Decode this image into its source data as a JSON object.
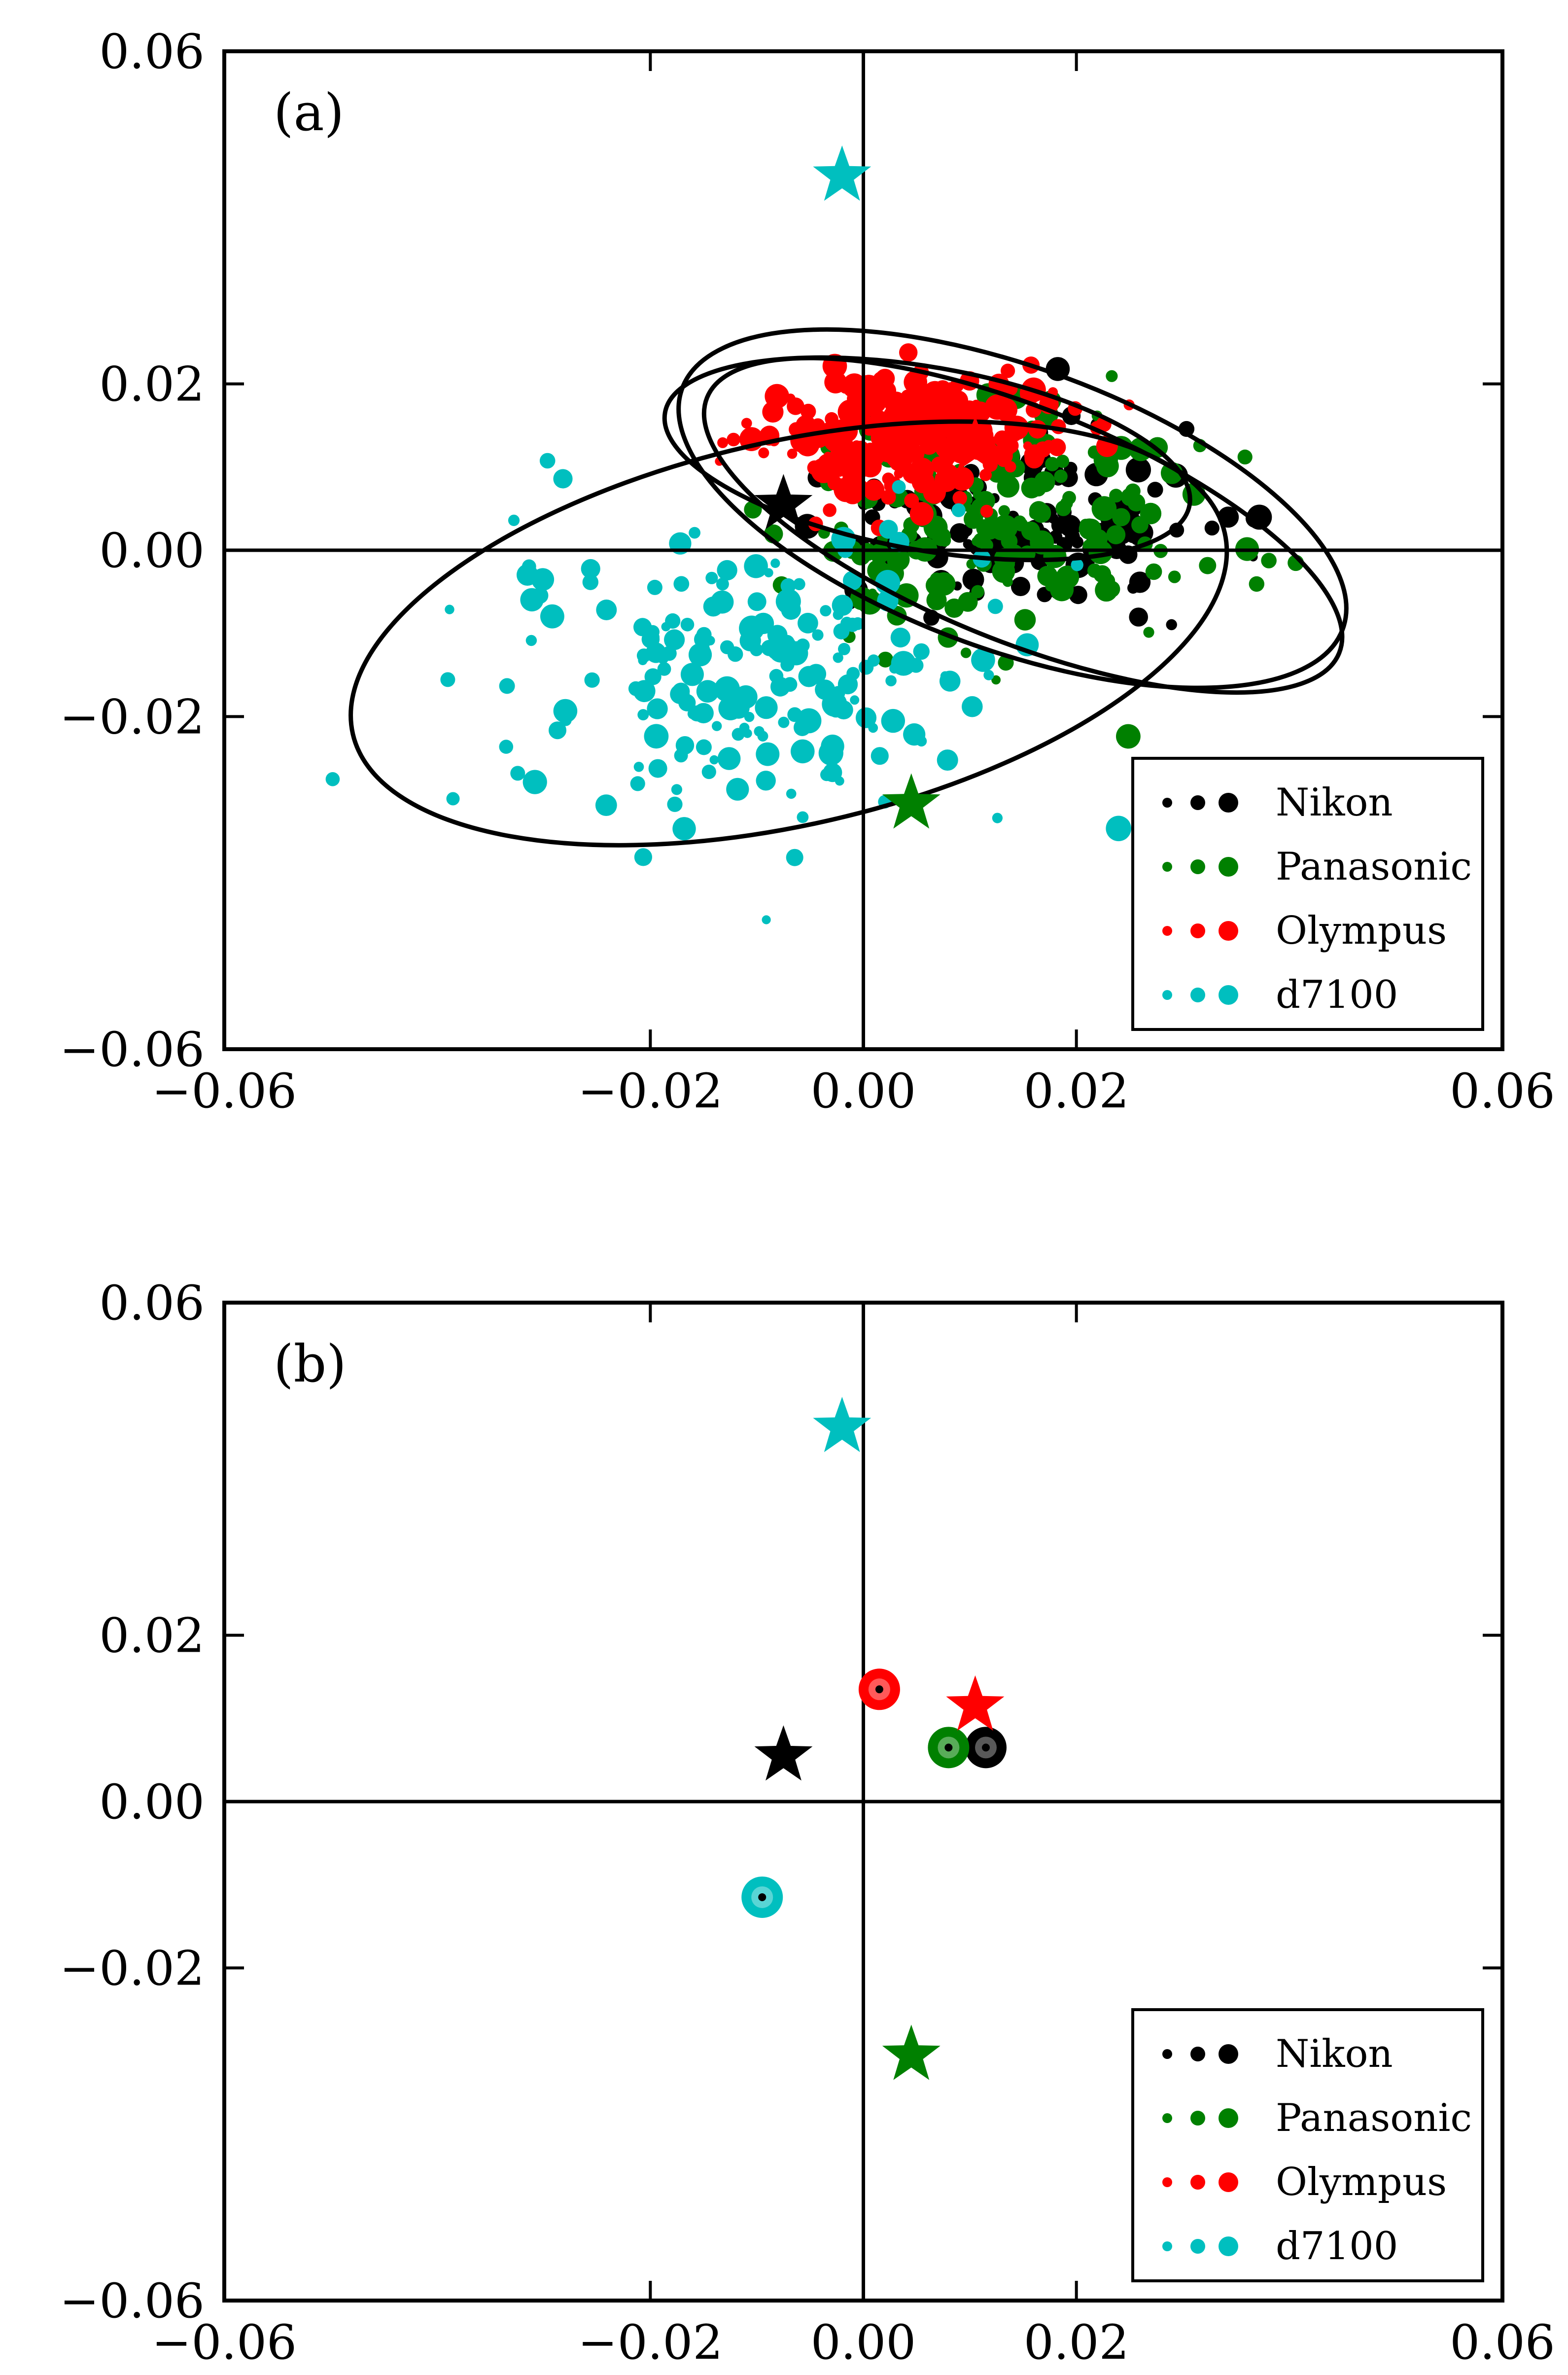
{
  "chart_data": [
    {
      "type": "scatter",
      "panel_label": "(a)",
      "xlim": [
        -0.06,
        0.06
      ],
      "ylim": [
        -0.06,
        0.06
      ],
      "xticks": [
        -0.06,
        -0.02,
        0.0,
        0.02,
        0.06
      ],
      "yticks": [
        -0.06,
        -0.02,
        0.0,
        0.02,
        0.06
      ],
      "xtick_labels": [
        "−0.06",
        "−0.02",
        "0.00",
        "0.02",
        "0.06"
      ],
      "ytick_labels": [
        "−0.06",
        "−0.02",
        "0.00",
        "0.02",
        "0.06"
      ],
      "axis_lines": {
        "x": 0,
        "y": 0
      },
      "legend": {
        "position": "lower-right",
        "entries": [
          {
            "label": "Nikon",
            "color": "#000000"
          },
          {
            "label": "Panasonic",
            "color": "#008000"
          },
          {
            "label": "Olympus",
            "color": "#ff0000"
          },
          {
            "label": "d7100",
            "color": "#00bfbf"
          }
        ]
      },
      "stars": [
        {
          "series": "Nikon",
          "x": -0.0075,
          "y": 0.0055,
          "color": "#000000"
        },
        {
          "series": "Panasonic",
          "x": 0.0045,
          "y": -0.0305,
          "color": "#008000"
        },
        {
          "series": "Olympus",
          "x": 0.0105,
          "y": 0.0125,
          "color": "#ff0000"
        },
        {
          "series": "d7100",
          "x": -0.002,
          "y": 0.045,
          "color": "#00bfbf"
        }
      ],
      "ellipses": [
        {
          "series": "d7100",
          "cx": -0.007,
          "cy": -0.01,
          "rx": 0.042,
          "ry": 0.023,
          "angle_deg": 13
        },
        {
          "series": "Panasonic",
          "cx": 0.014,
          "cy": 0.005,
          "rx": 0.033,
          "ry": 0.017,
          "angle_deg": -20
        },
        {
          "series": "Nikon",
          "cx": 0.015,
          "cy": 0.003,
          "rx": 0.032,
          "ry": 0.014,
          "angle_deg": -22
        },
        {
          "series": "Olympus",
          "cx": 0.006,
          "cy": 0.011,
          "rx": 0.025,
          "ry": 0.011,
          "angle_deg": -10
        }
      ],
      "scatter_series": [
        {
          "name": "Nikon",
          "color": "#000000",
          "center": [
            0.015,
            0.003
          ],
          "spread": [
            0.015,
            0.01
          ],
          "count": 130
        },
        {
          "name": "Panasonic",
          "color": "#008000",
          "center": [
            0.012,
            0.004
          ],
          "spread": [
            0.016,
            0.012
          ],
          "count": 190
        },
        {
          "name": "Olympus",
          "color": "#ff0000",
          "center": [
            0.004,
            0.014
          ],
          "spread": [
            0.012,
            0.006
          ],
          "count": 260
        },
        {
          "name": "d7100",
          "color": "#00bfbf",
          "center": [
            -0.01,
            -0.014
          ],
          "spread": [
            0.02,
            0.015
          ],
          "count": 200
        }
      ]
    },
    {
      "type": "scatter",
      "panel_label": "(b)",
      "xlim": [
        -0.06,
        0.06
      ],
      "ylim": [
        -0.06,
        0.06
      ],
      "xticks": [
        -0.06,
        -0.02,
        0.0,
        0.02,
        0.06
      ],
      "yticks": [
        -0.06,
        -0.02,
        0.0,
        0.02,
        0.06
      ],
      "xtick_labels": [
        "−0.06",
        "−0.02",
        "0.00",
        "0.02",
        "0.06"
      ],
      "ytick_labels": [
        "−0.06",
        "−0.02",
        "0.00",
        "0.02",
        "0.06"
      ],
      "axis_lines": {
        "x": 0,
        "y": 0
      },
      "legend": {
        "position": "lower-right",
        "entries": [
          {
            "label": "Nikon",
            "color": "#000000"
          },
          {
            "label": "Panasonic",
            "color": "#008000"
          },
          {
            "label": "Olympus",
            "color": "#ff0000"
          },
          {
            "label": "d7100",
            "color": "#00bfbf"
          }
        ]
      },
      "stars": [
        {
          "series": "Nikon",
          "x": -0.0075,
          "y": 0.0055,
          "color": "#000000"
        },
        {
          "series": "Panasonic",
          "x": 0.0045,
          "y": -0.0305,
          "color": "#008000"
        },
        {
          "series": "Olympus",
          "x": 0.0105,
          "y": 0.0115,
          "color": "#ff0000"
        },
        {
          "series": "d7100",
          "x": -0.002,
          "y": 0.045,
          "color": "#00bfbf"
        }
      ],
      "means": [
        {
          "series": "Nikon",
          "x": 0.0115,
          "y": 0.0065,
          "color": "#000000"
        },
        {
          "series": "Panasonic",
          "x": 0.008,
          "y": 0.0065,
          "color": "#008000"
        },
        {
          "series": "Olympus",
          "x": 0.0015,
          "y": 0.0135,
          "color": "#ff0000"
        },
        {
          "series": "d7100",
          "x": -0.0095,
          "y": -0.0115,
          "color": "#00bfbf"
        }
      ]
    }
  ]
}
